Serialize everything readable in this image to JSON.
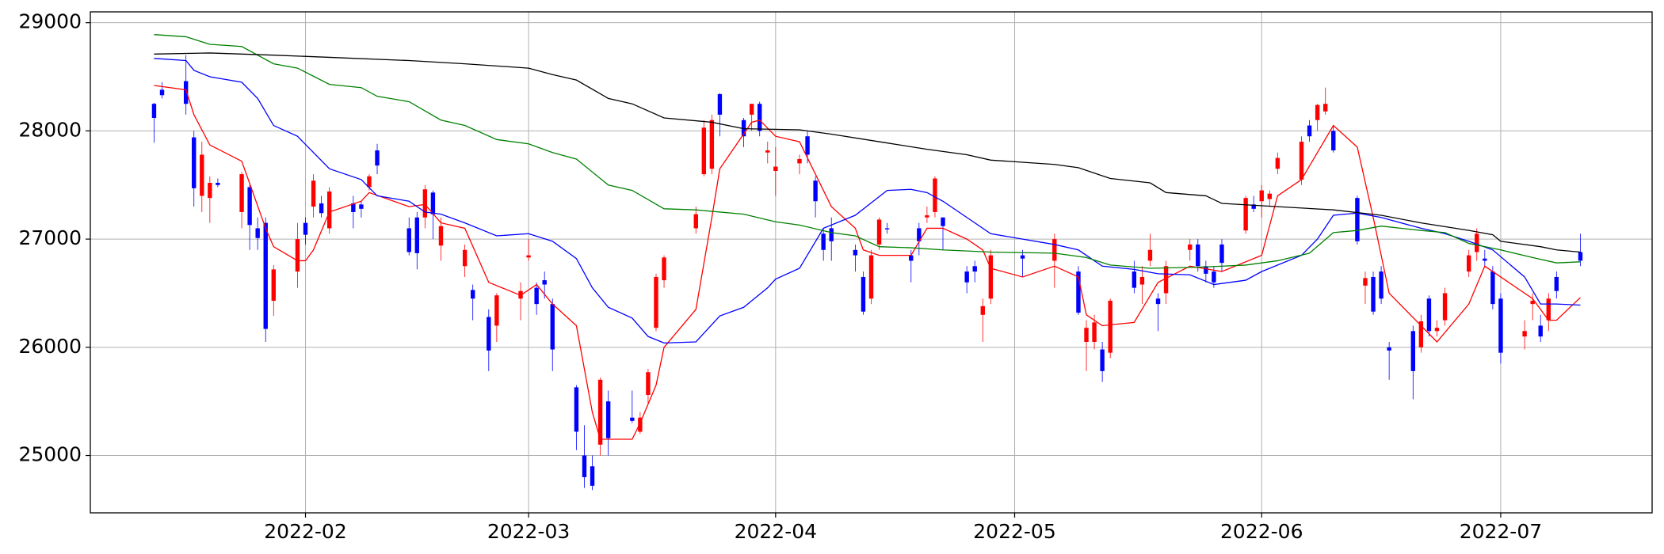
{
  "chart_data": {
    "type": "candlestick",
    "xlim": [
      5,
      201
    ],
    "xticks": [
      {
        "value": 32,
        "label": "2022-02"
      },
      {
        "value": 60,
        "label": "2022-03"
      },
      {
        "value": 91,
        "label": "2022-04"
      },
      {
        "value": 121,
        "label": "2022-05"
      },
      {
        "value": 152,
        "label": "2022-06"
      },
      {
        "value": 182,
        "label": "2022-07"
      }
    ],
    "ylim": [
      24470,
      29100
    ],
    "yticks": [
      25000,
      26000,
      27000,
      28000,
      29000
    ],
    "grid": true,
    "up_color": "#ff0000",
    "down_color": "#0000ff",
    "candles": {
      "x": [
        13,
        14,
        17,
        18,
        19,
        20,
        21,
        24,
        25,
        26,
        27,
        28,
        31,
        32,
        33,
        34,
        35,
        38,
        39,
        40,
        41,
        45,
        46,
        47,
        48,
        49,
        52,
        53,
        55,
        56,
        59,
        60,
        61,
        62,
        63,
        66,
        67,
        68,
        69,
        70,
        73,
        74,
        75,
        76,
        77,
        81,
        82,
        83,
        84,
        87,
        88,
        89,
        90,
        91,
        94,
        95,
        96,
        97,
        98,
        101,
        102,
        103,
        104,
        105,
        108,
        109,
        110,
        111,
        112,
        115,
        116,
        117,
        118,
        122,
        126,
        129,
        130,
        131,
        132,
        133,
        136,
        137,
        138,
        139,
        140,
        143,
        144,
        145,
        146,
        147,
        150,
        151,
        152,
        153,
        154,
        157,
        158,
        159,
        160,
        161,
        164,
        165,
        166,
        167,
        168,
        171,
        172,
        173,
        174,
        175,
        178,
        179,
        180,
        181,
        182,
        185,
        186,
        187,
        188,
        189,
        192
      ],
      "open": [
        28250,
        28380,
        28460,
        27940,
        27400,
        27380,
        27520,
        27250,
        27480,
        27100,
        27150,
        26430,
        26700,
        27150,
        27300,
        27330,
        27100,
        27330,
        27320,
        27480,
        27820,
        27100,
        27200,
        27200,
        27430,
        26940,
        26750,
        26530,
        26280,
        26200,
        26450,
        26830,
        26550,
        26620,
        26400,
        25630,
        25000,
        24900,
        25100,
        25500,
        25350,
        25220,
        25560,
        26180,
        26620,
        27100,
        27600,
        27650,
        28340,
        28100,
        28150,
        28250,
        27800,
        27630,
        27700,
        27950,
        27540,
        27050,
        27100,
        26900,
        26650,
        26450,
        26950,
        27100,
        26850,
        27100,
        27200,
        27250,
        27200,
        26700,
        26750,
        26300,
        26450,
        26850,
        26800,
        26700,
        26050,
        26050,
        25980,
        25950,
        26700,
        26580,
        26800,
        26450,
        26500,
        26900,
        26950,
        26750,
        26700,
        26950,
        27080,
        27320,
        27350,
        27370,
        27650,
        27550,
        28050,
        28100,
        28180,
        28000,
        27380,
        26570,
        26650,
        26700,
        26000,
        26150,
        26000,
        26450,
        26150,
        26250,
        26700,
        26880,
        26820,
        26700,
        26450,
        26100,
        26400,
        26200,
        26250,
        26650,
        26880
      ],
      "high": [
        28260,
        28450,
        28700,
        28000,
        27900,
        27580,
        27560,
        27620,
        27500,
        27200,
        27200,
        26760,
        27150,
        27200,
        27600,
        27400,
        27480,
        27400,
        27350,
        27600,
        27880,
        27200,
        27250,
        27500,
        27450,
        27200,
        26950,
        26580,
        26350,
        26500,
        26600,
        27000,
        26600,
        26700,
        26450,
        25650,
        25280,
        25000,
        25720,
        25600,
        25600,
        25400,
        25800,
        26680,
        26850,
        27300,
        28100,
        28150,
        28350,
        28120,
        28250,
        28270,
        27900,
        27850,
        27780,
        28000,
        27580,
        27100,
        27200,
        26950,
        26700,
        26900,
        27200,
        27150,
        26900,
        27150,
        27300,
        27580,
        27200,
        26750,
        26800,
        26450,
        26900,
        26900,
        27050,
        26750,
        26250,
        26300,
        26050,
        26450,
        26800,
        26750,
        27050,
        26500,
        26800,
        27000,
        27000,
        26800,
        26750,
        27000,
        27400,
        27400,
        27500,
        27450,
        27800,
        27950,
        28100,
        28250,
        28400,
        28050,
        27400,
        26700,
        26700,
        26750,
        26050,
        26200,
        26300,
        26480,
        26250,
        26550,
        26900,
        27100,
        26900,
        26750,
        26500,
        26250,
        26500,
        26300,
        26500,
        26700,
        27050
      ],
      "low": [
        27890,
        28300,
        28150,
        27300,
        27250,
        27150,
        27480,
        27100,
        26900,
        26900,
        26050,
        26290,
        26550,
        26950,
        27200,
        27200,
        27050,
        27100,
        27200,
        27450,
        27600,
        26850,
        26720,
        27100,
        27000,
        26800,
        26650,
        26250,
        25780,
        26050,
        26250,
        26800,
        26300,
        26450,
        25780,
        25050,
        24700,
        24680,
        25000,
        25000,
        25300,
        25200,
        25480,
        26150,
        26550,
        27050,
        27580,
        27600,
        27950,
        27850,
        28000,
        27950,
        27700,
        27400,
        27600,
        27700,
        27200,
        26800,
        26800,
        26700,
        26300,
        26400,
        26900,
        27050,
        26600,
        26850,
        27150,
        27200,
        26900,
        26500,
        26600,
        26050,
        26400,
        26650,
        26550,
        26300,
        25780,
        25980,
        25680,
        25900,
        26500,
        26400,
        26750,
        26150,
        26400,
        26800,
        26700,
        26600,
        26550,
        26700,
        27050,
        27250,
        27200,
        27300,
        27600,
        27500,
        27900,
        28000,
        28150,
        27800,
        26950,
        26400,
        26300,
        26400,
        25700,
        25520,
        25950,
        26100,
        26100,
        26200,
        26650,
        26800,
        26750,
        26350,
        25850,
        25980,
        26250,
        26050,
        26150,
        26450,
        26750
      ],
      "close": [
        28120,
        28330,
        28250,
        27470,
        27780,
        27520,
        27500,
        27600,
        27130,
        27010,
        26170,
        26720,
        27000,
        27040,
        27540,
        27240,
        27440,
        27250,
        27280,
        27580,
        27680,
        26880,
        26870,
        27460,
        27230,
        27120,
        26900,
        26450,
        25970,
        26480,
        26520,
        26850,
        26400,
        26580,
        25980,
        25220,
        24800,
        24720,
        25700,
        25160,
        25320,
        25350,
        25770,
        26650,
        26830,
        27230,
        28030,
        28100,
        28150,
        27950,
        28250,
        28000,
        27820,
        27670,
        27740,
        27780,
        27350,
        26900,
        26980,
        26850,
        26330,
        26850,
        27180,
        27090,
        26800,
        26980,
        27220,
        27560,
        27120,
        26600,
        26700,
        26380,
        26850,
        26820,
        27000,
        26320,
        26180,
        26230,
        25780,
        26430,
        26550,
        26650,
        26900,
        26400,
        26750,
        26950,
        26750,
        26680,
        26600,
        26780,
        27380,
        27280,
        27450,
        27420,
        27750,
        27900,
        27950,
        28240,
        28250,
        27820,
        26980,
        26640,
        26330,
        26450,
        25970,
        25780,
        26240,
        26150,
        26180,
        26500,
        26850,
        27050,
        26800,
        26400,
        25950,
        26150,
        26430,
        26100,
        26450,
        26520,
        26800
      ]
    },
    "lines": [
      {
        "color": "#ff0000",
        "x": [
          13,
          17,
          18,
          20,
          24,
          27,
          28,
          31,
          32,
          33,
          35,
          39,
          40,
          45,
          47,
          49,
          52,
          55,
          59,
          61,
          63,
          66,
          68,
          69,
          73,
          74,
          76,
          77,
          81,
          83,
          84,
          88,
          89,
          91,
          94,
          97,
          98,
          101,
          102,
          104,
          108,
          110,
          112,
          115,
          117,
          118,
          122,
          126,
          129,
          130,
          132,
          136,
          139,
          143,
          147,
          152,
          154,
          157,
          159,
          161,
          164,
          166,
          168,
          172,
          174,
          178,
          180,
          182,
          186,
          188,
          189,
          192
        ],
        "values": [
          28420,
          28380,
          28150,
          27870,
          27720,
          27100,
          26930,
          26800,
          26800,
          26900,
          27250,
          27350,
          27430,
          27300,
          27320,
          27150,
          27100,
          26600,
          26480,
          26580,
          26400,
          26200,
          25400,
          25150,
          25150,
          25300,
          25650,
          26000,
          26350,
          27200,
          27650,
          28080,
          28100,
          27950,
          27900,
          27450,
          27300,
          27100,
          26900,
          26850,
          26850,
          27100,
          27100,
          27000,
          26900,
          26730,
          26650,
          26750,
          26650,
          26300,
          26200,
          26230,
          26600,
          26750,
          26700,
          26850,
          27400,
          27550,
          27800,
          28050,
          27850,
          27200,
          26500,
          26200,
          26050,
          26400,
          26750,
          26650,
          26450,
          26250,
          26250,
          26460
        ]
      },
      {
        "color": "#0000ff",
        "x": [
          13,
          17,
          18,
          20,
          24,
          26,
          28,
          31,
          33,
          35,
          39,
          41,
          45,
          47,
          49,
          52,
          56,
          60,
          63,
          66,
          68,
          70,
          73,
          75,
          77,
          81,
          84,
          87,
          90,
          91,
          94,
          97,
          101,
          105,
          108,
          110,
          112,
          115,
          118,
          122,
          126,
          129,
          132,
          136,
          139,
          143,
          146,
          150,
          152,
          157,
          159,
          161,
          164,
          167,
          172,
          175,
          178,
          181,
          185,
          187,
          189,
          192
        ],
        "values": [
          28670,
          28650,
          28560,
          28500,
          28450,
          28300,
          28050,
          27950,
          27800,
          27650,
          27550,
          27400,
          27350,
          27250,
          27230,
          27150,
          27030,
          27050,
          26980,
          26820,
          26550,
          26370,
          26270,
          26100,
          26040,
          26050,
          26290,
          26370,
          26550,
          26630,
          26730,
          27100,
          27220,
          27450,
          27460,
          27430,
          27350,
          27200,
          27050,
          27000,
          26950,
          26900,
          26750,
          26720,
          26680,
          26670,
          26580,
          26620,
          26700,
          26850,
          27000,
          27220,
          27240,
          27200,
          27100,
          27050,
          26980,
          26900,
          26650,
          26400,
          26400,
          26390
        ]
      },
      {
        "color": "#008000",
        "x": [
          13,
          17,
          20,
          24,
          28,
          31,
          35,
          39,
          41,
          45,
          49,
          52,
          56,
          60,
          63,
          66,
          70,
          73,
          77,
          81,
          87,
          91,
          94,
          98,
          101,
          104,
          108,
          112,
          118,
          126,
          130,
          133,
          138,
          144,
          150,
          154,
          158,
          161,
          164,
          167,
          172,
          175,
          178,
          182,
          186,
          189,
          192
        ],
        "values": [
          28890,
          28870,
          28800,
          28780,
          28620,
          28580,
          28430,
          28400,
          28320,
          28270,
          28100,
          28050,
          27920,
          27880,
          27800,
          27740,
          27500,
          27450,
          27280,
          27270,
          27230,
          27160,
          27130,
          27060,
          27030,
          26930,
          26920,
          26900,
          26880,
          26870,
          26830,
          26760,
          26730,
          26740,
          26760,
          26800,
          26870,
          27060,
          27080,
          27120,
          27080,
          27060,
          26960,
          26900,
          26830,
          26780,
          26790
        ]
      },
      {
        "color": "#000000",
        "x": [
          13,
          20,
          28,
          35,
          45,
          52,
          60,
          63,
          66,
          70,
          73,
          77,
          83,
          87,
          94,
          98,
          104,
          110,
          115,
          118,
          126,
          129,
          133,
          138,
          140,
          145,
          147,
          154,
          161,
          167,
          172,
          178,
          181,
          182,
          187,
          189,
          192
        ],
        "values": [
          28710,
          28720,
          28700,
          28680,
          28650,
          28620,
          28580,
          28520,
          28470,
          28300,
          28250,
          28120,
          28080,
          28020,
          28010,
          27970,
          27900,
          27830,
          27780,
          27730,
          27690,
          27660,
          27560,
          27520,
          27430,
          27400,
          27330,
          27300,
          27270,
          27220,
          27150,
          27080,
          27040,
          26980,
          26930,
          26900,
          26880
        ]
      }
    ]
  }
}
